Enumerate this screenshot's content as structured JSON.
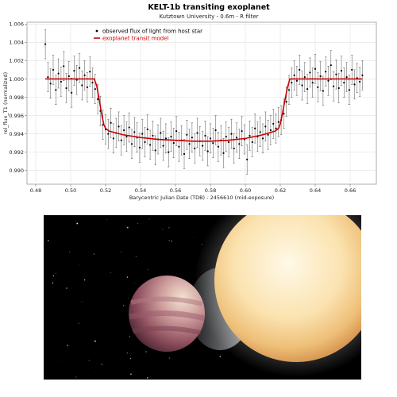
{
  "chart_data": {
    "type": "scatter",
    "title": "KELT-1b transiting exoplanet",
    "subtitle": "Kutztown University  -  0.6m  -  R filter",
    "xlabel": "Barycentric Julian Date (TDB) - 2456610 (mid-exposure)",
    "ylabel": "rel_flux_T1 (normalized)",
    "xlim": [
      0.475,
      0.675
    ],
    "ylim": [
      0.9885,
      1.0062
    ],
    "xticks": [
      "0.48",
      "0.50",
      "0.52",
      "0.54",
      "0.56",
      "0.58",
      "0.60",
      "0.62",
      "0.64",
      "0.66"
    ],
    "yticks": [
      "0.990",
      "0.992",
      "0.994",
      "0.996",
      "0.998",
      "1.000",
      "1.002",
      "1.004",
      "1.006"
    ],
    "grid": true,
    "legend_position": "top-left",
    "colors": {
      "observed": "#000000",
      "model": "#d00000"
    },
    "series": [
      {
        "name": "observed flux of light from host star",
        "kind": "points-with-error-bars",
        "error": 0.0016,
        "x": [
          0.4855,
          0.487,
          0.4885,
          0.49,
          0.4915,
          0.493,
          0.4945,
          0.496,
          0.4975,
          0.499,
          0.5005,
          0.502,
          0.5035,
          0.505,
          0.5065,
          0.508,
          0.5095,
          0.511,
          0.5125,
          0.514,
          0.5155,
          0.517,
          0.5185,
          0.52,
          0.5215,
          0.523,
          0.5245,
          0.526,
          0.5275,
          0.529,
          0.5305,
          0.532,
          0.5335,
          0.535,
          0.5365,
          0.538,
          0.5395,
          0.541,
          0.5425,
          0.544,
          0.5455,
          0.547,
          0.5485,
          0.55,
          0.5515,
          0.553,
          0.5545,
          0.556,
          0.5575,
          0.559,
          0.5605,
          0.562,
          0.5635,
          0.565,
          0.5665,
          0.568,
          0.5695,
          0.571,
          0.5725,
          0.574,
          0.5755,
          0.577,
          0.5785,
          0.58,
          0.5815,
          0.583,
          0.5845,
          0.586,
          0.5875,
          0.589,
          0.5905,
          0.592,
          0.5935,
          0.595,
          0.5965,
          0.598,
          0.5995,
          0.601,
          0.6025,
          0.604,
          0.6055,
          0.607,
          0.6085,
          0.61,
          0.6115,
          0.613,
          0.6145,
          0.616,
          0.6175,
          0.619,
          0.6205,
          0.622,
          0.6235,
          0.625,
          0.6265,
          0.628,
          0.6295,
          0.631,
          0.6325,
          0.634,
          0.6355,
          0.637,
          0.6385,
          0.64,
          0.6415,
          0.643,
          0.6445,
          0.646,
          0.6475,
          0.649,
          0.6505,
          0.652,
          0.6535,
          0.655,
          0.6565,
          0.658,
          0.6595,
          0.661,
          0.6625,
          0.664,
          0.6655,
          0.667
        ],
        "y": [
          1.0038,
          1.0002,
          0.9995,
          1.001,
          0.9988,
          1.0006,
          0.9997,
          1.0014,
          0.999,
          1.0003,
          0.9985,
          1.0009,
          0.9999,
          1.0012,
          0.9993,
          1.0004,
          0.9991,
          1.0008,
          0.9996,
          0.9989,
          0.9978,
          0.9965,
          0.995,
          0.9945,
          0.994,
          0.9952,
          0.9935,
          0.9941,
          0.9948,
          0.9933,
          0.9944,
          0.9937,
          0.9947,
          0.9929,
          0.9942,
          0.9936,
          0.9925,
          0.994,
          0.9931,
          0.9945,
          0.9928,
          0.9938,
          0.9922,
          0.9934,
          0.9941,
          0.9927,
          0.9935,
          0.992,
          0.9937,
          0.993,
          0.9943,
          0.9926,
          0.9933,
          0.9918,
          0.9939,
          0.9929,
          0.9936,
          0.9924,
          0.9941,
          0.9932,
          0.9927,
          0.9938,
          0.9921,
          0.9935,
          0.993,
          0.9944,
          0.9926,
          0.9933,
          0.9919,
          0.9937,
          0.9931,
          0.994,
          0.9924,
          0.9936,
          0.9929,
          0.9943,
          0.9934,
          0.9912,
          0.9938,
          0.9931,
          0.9946,
          0.9937,
          0.9942,
          0.9935,
          0.9948,
          0.9939,
          0.9944,
          0.9951,
          0.9946,
          0.9953,
          0.9955,
          0.9962,
          0.9975,
          0.9988,
          0.9996,
          1.0004,
          0.9998,
          1.001,
          0.9993,
          1.0002,
          0.9989,
          1.0007,
          0.9996,
          1.0011,
          0.9991,
          1.0003,
          0.9987,
          1.0008,
          0.9998,
          1.0015,
          0.9992,
          1.0005,
          0.999,
          1.0009,
          0.9996,
          1.0002,
          0.9988,
          1.001,
          0.9994,
          1.0001,
          0.9997,
          1.0004
        ]
      },
      {
        "name": "exoplanet transit model",
        "kind": "line",
        "x": [
          0.4855,
          0.5135,
          0.515,
          0.516,
          0.517,
          0.518,
          0.519,
          0.52,
          0.522,
          0.53,
          0.54,
          0.55,
          0.56,
          0.57,
          0.58,
          0.59,
          0.6,
          0.61,
          0.617,
          0.619,
          0.62,
          0.621,
          0.622,
          0.623,
          0.624,
          0.6255,
          0.667
        ],
        "y": [
          1.0,
          1.0,
          0.9992,
          0.9981,
          0.997,
          0.9959,
          0.995,
          0.9946,
          0.9943,
          0.9939,
          0.9936,
          0.9934,
          0.9933,
          0.9932,
          0.9932,
          0.9933,
          0.9935,
          0.9939,
          0.9943,
          0.9946,
          0.9951,
          0.996,
          0.997,
          0.998,
          0.999,
          1.0,
          1.0
        ]
      }
    ]
  }
}
